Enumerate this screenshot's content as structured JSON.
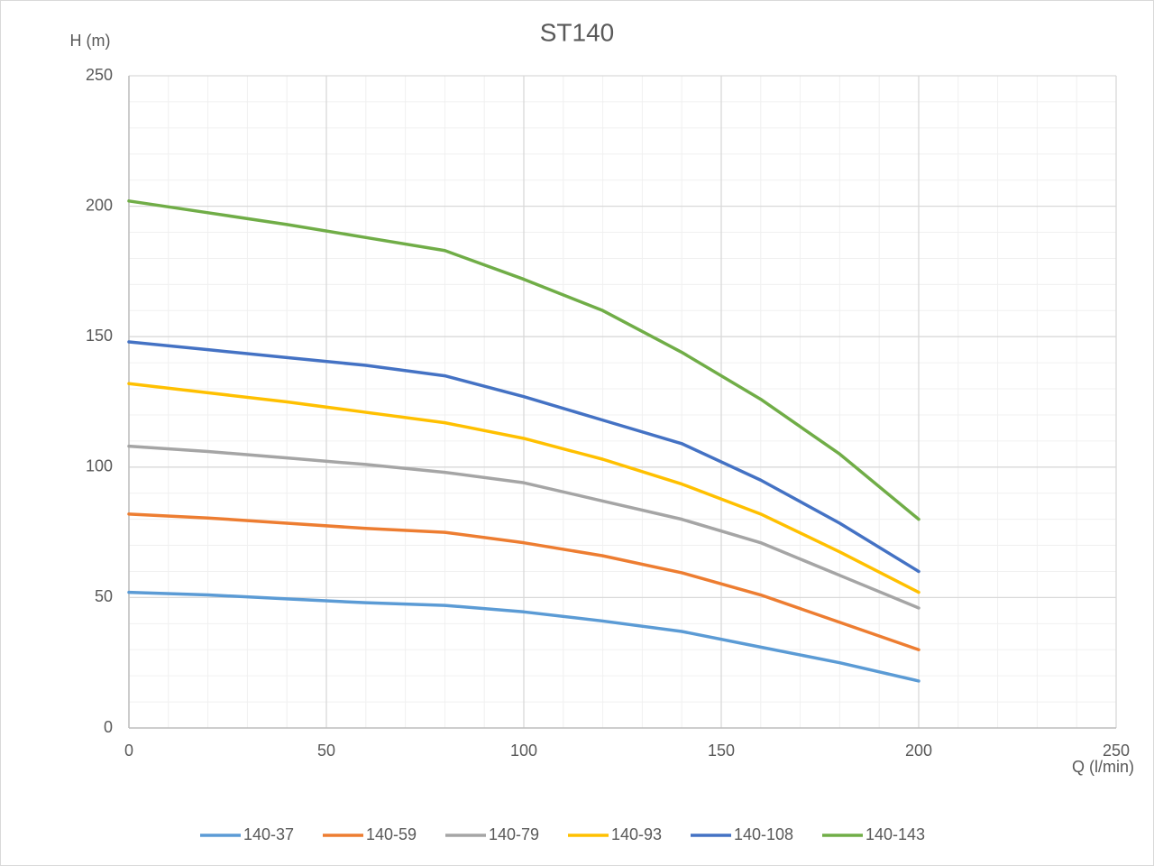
{
  "chart_data": {
    "type": "line",
    "title": "ST140",
    "y_label": "H (m)",
    "x_label": "Q (l/min)",
    "x": [
      0,
      20,
      40,
      60,
      80,
      100,
      120,
      140,
      160,
      180,
      200
    ],
    "series": [
      {
        "name": "140-37",
        "color": "#5b9bd5",
        "values": [
          52,
          51,
          49.5,
          48,
          47,
          44.5,
          41,
          37,
          31,
          25,
          18
        ]
      },
      {
        "name": "140-59",
        "color": "#ed7d31",
        "values": [
          82,
          80.5,
          78.5,
          76.5,
          75,
          71,
          66,
          59.5,
          51,
          40.5,
          30
        ]
      },
      {
        "name": "140-79",
        "color": "#a5a5a5",
        "values": [
          108,
          106,
          103.5,
          101,
          98,
          94,
          87,
          80,
          71,
          58.5,
          46
        ]
      },
      {
        "name": "140-93",
        "color": "#ffc000",
        "values": [
          132,
          128.5,
          125,
          121,
          117,
          111,
          103,
          93.5,
          82,
          67.5,
          52
        ]
      },
      {
        "name": "140-108",
        "color": "#4472c4",
        "values": [
          148,
          145,
          142,
          139,
          135,
          127,
          118,
          109,
          95,
          78.5,
          60
        ]
      },
      {
        "name": "140-143",
        "color": "#70ad47",
        "values": [
          202,
          197.5,
          193,
          188,
          183,
          172,
          160,
          144,
          126,
          105,
          80
        ]
      }
    ],
    "xlim": [
      0,
      250
    ],
    "xticks": [
      0,
      50,
      100,
      150,
      200,
      250
    ],
    "ylim": [
      0,
      250
    ],
    "yticks": [
      0,
      50,
      100,
      150,
      200,
      250
    ],
    "grid": true,
    "legend": "bottom"
  }
}
